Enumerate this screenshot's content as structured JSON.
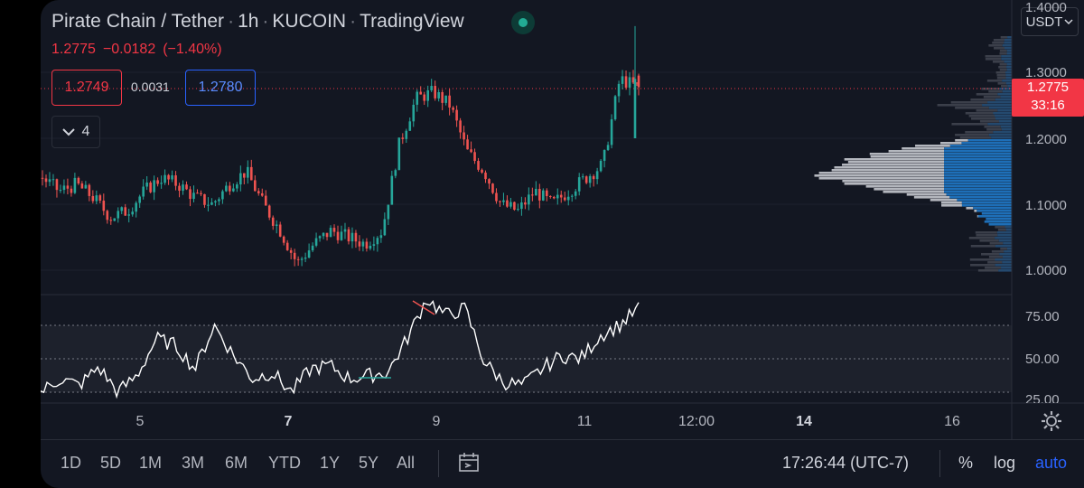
{
  "header": {
    "pair": "Pirate Chain / Tether",
    "interval": "1h",
    "exchange": "KUCOIN",
    "platform": "TradingView"
  },
  "ohlc": {
    "last": "1.2775",
    "change": "−0.0182",
    "change_pct": "(−1.40%)"
  },
  "quote": {
    "bid": "1.2749",
    "spread": "0.0031",
    "ask": "1.2780"
  },
  "indicators_collapse": {
    "count": "4"
  },
  "price_axis": {
    "currency": "USDT",
    "labels": [
      "1.4000",
      "1.3000",
      "1.2000",
      "1.1000",
      "1.0000"
    ],
    "current_price": "1.2775",
    "countdown": "33:16"
  },
  "rsi_axis": {
    "labels": [
      "75.00",
      "50.00",
      "25.00"
    ]
  },
  "time_axis": {
    "labels": [
      "5",
      "7",
      "9",
      "11",
      "12:00",
      "14",
      "16"
    ]
  },
  "toolbar": {
    "ranges": [
      "1D",
      "5D",
      "1M",
      "3M",
      "6M",
      "YTD",
      "1Y",
      "5Y",
      "All"
    ],
    "clock": "17:26:44 (UTC-7)",
    "percent": "%",
    "log": "log",
    "auto": "auto"
  },
  "colors": {
    "up": "#26a69a",
    "down": "#ef5350",
    "accent": "#2962ff",
    "rsi_line": "#ffffff",
    "profile_value_area": "#1e6fb8",
    "profile_outside": "#c7c9cf"
  },
  "chart_data": {
    "type": "candlestick",
    "x": [
      "5",
      "7",
      "9",
      "11",
      "12:00",
      "14",
      "16"
    ],
    "ylim": [
      1.0,
      1.4
    ],
    "close_path": [
      1.14,
      1.12,
      1.13,
      1.11,
      1.08,
      1.09,
      1.12,
      1.14,
      1.13,
      1.11,
      1.1,
      1.13,
      1.15,
      1.1,
      1.06,
      1.01,
      1.04,
      1.06,
      1.05,
      1.04,
      1.06,
      1.19,
      1.26,
      1.27,
      1.25,
      1.18,
      1.15,
      1.1,
      1.09,
      1.12,
      1.1,
      1.12,
      1.14,
      1.16,
      1.29,
      1.278
    ],
    "rsi_levels": [
      70,
      50,
      30
    ],
    "rsi_path": [
      30,
      38,
      34,
      45,
      30,
      40,
      62,
      58,
      44,
      70,
      52,
      38,
      42,
      30,
      44,
      46,
      38,
      40,
      42,
      62,
      86,
      76,
      80,
      48,
      36,
      34,
      44,
      52,
      50,
      64,
      70,
      80
    ]
  }
}
